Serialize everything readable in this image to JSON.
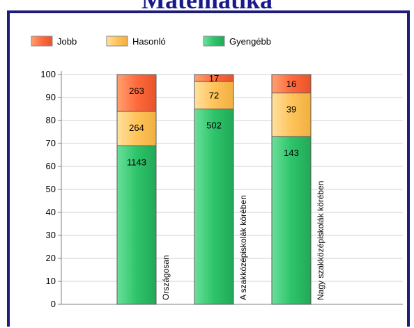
{
  "page": {
    "title": "Matematika"
  },
  "chart_data": {
    "type": "bar",
    "stacked": true,
    "categories": [
      "Országosan",
      "A szakközépiskolák körében",
      "Nagy szakközépiskolák körében"
    ],
    "series": [
      {
        "name": "Gyengébb",
        "color": "#2ec46a",
        "values": [
          69,
          85,
          73
        ],
        "labels": [
          "1143",
          "502",
          "143"
        ]
      },
      {
        "name": "Hasonló",
        "color": "#ffc35a",
        "values": [
          15,
          12,
          19
        ],
        "labels": [
          "264",
          "72",
          "39"
        ]
      },
      {
        "name": "Jobb",
        "color": "#ff6a3c",
        "values": [
          16,
          3,
          8
        ],
        "labels": [
          "263",
          "17",
          "16"
        ]
      }
    ],
    "legend_order": [
      "Jobb",
      "Hasonló",
      "Gyengébb"
    ],
    "yticks": [
      "0",
      "10",
      "20",
      "30",
      "40",
      "50",
      "60",
      "70",
      "80",
      "90",
      "100"
    ],
    "ylim": [
      0,
      100
    ],
    "grid": true,
    "legend_position": "top-left"
  }
}
